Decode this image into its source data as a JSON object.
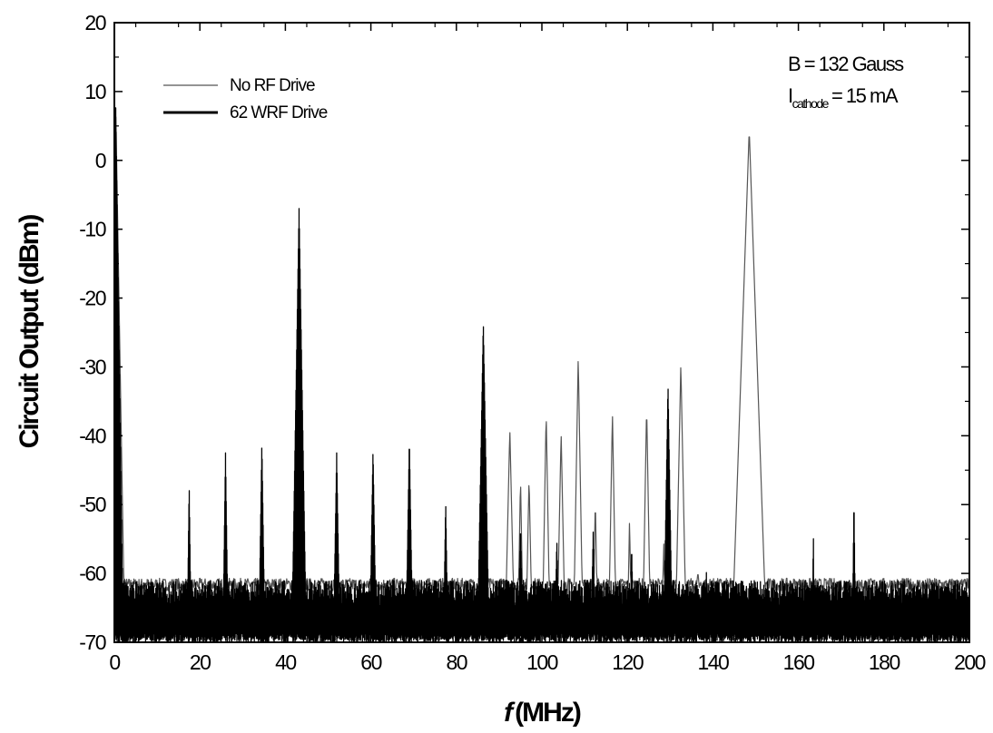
{
  "chart_data": {
    "type": "line",
    "xlabel_italic": "f",
    "xlabel_unit": "(MHz)",
    "ylabel": "Circuit Output (dBm)",
    "xlim": [
      0,
      200
    ],
    "ylim": [
      -70,
      20
    ],
    "x_ticks": [
      "0",
      "20",
      "40",
      "60",
      "80",
      "100",
      "120",
      "140",
      "160",
      "180",
      "200"
    ],
    "y_ticks": [
      "20",
      "10",
      "0",
      "-10",
      "-20",
      "-30",
      "-40",
      "-50",
      "-60",
      "-70"
    ],
    "grid": false,
    "legend_position": "top-left",
    "annotations": {
      "b_field": "B = 132 Gauss",
      "current_symbol": "I",
      "current_subscript": "cathode",
      "current_value": "= 15 mA"
    },
    "noise_floor_dbm": -63,
    "series": [
      {
        "name": "No RF Drive",
        "color": "#555555",
        "line_style": "thin",
        "peaks": [
          {
            "x": 0.3,
            "y": 8.5,
            "w": 0.6
          },
          {
            "x": 92.5,
            "y": -39,
            "w": 0.8
          },
          {
            "x": 95.0,
            "y": -46,
            "w": 0.6
          },
          {
            "x": 97.0,
            "y": -46,
            "w": 0.7
          },
          {
            "x": 101.0,
            "y": -36.5,
            "w": 0.6
          },
          {
            "x": 104.5,
            "y": -39.5,
            "w": 0.7
          },
          {
            "x": 108.5,
            "y": -28.5,
            "w": 0.6
          },
          {
            "x": 112.5,
            "y": -49,
            "w": 0.6
          },
          {
            "x": 116.5,
            "y": -36.5,
            "w": 0.6
          },
          {
            "x": 120.5,
            "y": -52,
            "w": 0.6
          },
          {
            "x": 124.5,
            "y": -35.5,
            "w": 0.6
          },
          {
            "x": 128.5,
            "y": -55,
            "w": 0.6
          },
          {
            "x": 132.5,
            "y": -29.5,
            "w": 0.7
          },
          {
            "x": 136.5,
            "y": -58,
            "w": 0.6
          },
          {
            "x": 148.5,
            "y": 4.5,
            "w": 1.2
          }
        ]
      },
      {
        "name": "62 WRF Drive",
        "color": "#000000",
        "line_style": "thick",
        "peaks": [
          {
            "x": 0.3,
            "y": 8.5,
            "w": 0.5
          },
          {
            "x": 17.5,
            "y": -47,
            "w": 0.45
          },
          {
            "x": 26.0,
            "y": -42.5,
            "w": 0.5
          },
          {
            "x": 34.5,
            "y": -41,
            "w": 0.55
          },
          {
            "x": 43.2,
            "y": -7,
            "w": 0.6
          },
          {
            "x": 52.0,
            "y": -42.5,
            "w": 0.6
          },
          {
            "x": 60.5,
            "y": -42,
            "w": 0.6
          },
          {
            "x": 69.0,
            "y": -40.5,
            "w": 0.6
          },
          {
            "x": 77.5,
            "y": -49.5,
            "w": 0.55
          },
          {
            "x": 86.3,
            "y": -23.5,
            "w": 0.65
          },
          {
            "x": 95.0,
            "y": -53,
            "w": 0.7
          },
          {
            "x": 103.5,
            "y": -55,
            "w": 0.7
          },
          {
            "x": 112.0,
            "y": -54,
            "w": 0.7
          },
          {
            "x": 121.0,
            "y": -56,
            "w": 0.7
          },
          {
            "x": 129.5,
            "y": -32.5,
            "w": 0.6
          },
          {
            "x": 138.5,
            "y": -59,
            "w": 0.5
          },
          {
            "x": 163.5,
            "y": -53.5,
            "w": 0.3
          },
          {
            "x": 173.0,
            "y": -49,
            "w": 0.4
          }
        ]
      }
    ]
  }
}
